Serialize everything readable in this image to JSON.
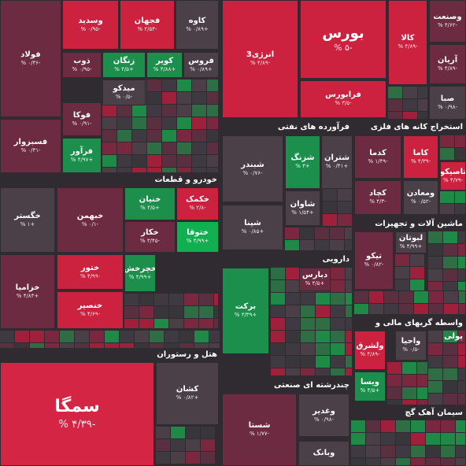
{
  "sectors": [
    {
      "name": "خودرو و قطعات"
    },
    {
      "name": "هتل و رستوران"
    },
    {
      "name": "فرآورده های نفتی"
    },
    {
      "name": "استخراج کانه های فلزی"
    },
    {
      "name": "ماشین آلات و تجهیزات"
    },
    {
      "name": "دارویی"
    },
    {
      "name": "واسطه گریهای مالی و پولی"
    },
    {
      "name": "چندرشته ای صنعتی"
    },
    {
      "name": "سیمان آهک گچ"
    }
  ],
  "tiles": [
    {
      "name": "فولاد",
      "change": "-۰/۳۶ %"
    },
    {
      "name": "فسبزوار",
      "change": "-۰/۳۱ %"
    },
    {
      "name": "وسدید",
      "change": "-۰/۹۵ %"
    },
    {
      "name": "فجهان",
      "change": "-۲/۵۴ %"
    },
    {
      "name": "کاوه",
      "change": "+۰/۸۹ %"
    },
    {
      "name": "ذوب",
      "change": "-۰/۹۵ %"
    },
    {
      "name": "زنگان",
      "change": "+۴/۵ %"
    },
    {
      "name": "کویر",
      "change": "+۴/۸۸ %"
    },
    {
      "name": "فروس",
      "change": "+۰/۸۹ %"
    },
    {
      "name": "میدکو",
      "change": "-۰/۵ %"
    },
    {
      "name": "فوکا",
      "change": "-۰/۹۱ %"
    },
    {
      "name": "فرآور",
      "change": "+۴/۹۷ %"
    },
    {
      "name": "خگستر",
      "change": "+۱ %"
    },
    {
      "name": "خبهمن",
      "change": "-۰/۱ %"
    },
    {
      "name": "خنیان",
      "change": "+۴/۵ %"
    },
    {
      "name": "خکمک",
      "change": "-۲/۸ %"
    },
    {
      "name": "خکار",
      "change": "-۳/۴۵ %"
    },
    {
      "name": "ختوقا",
      "change": "+۴/۹۹ %"
    },
    {
      "name": "ختور",
      "change": "-۴/۹۹ %"
    },
    {
      "name": "خزامیا",
      "change": "+۴/۸۳ %"
    },
    {
      "name": "خنصیر",
      "change": "-۴/۶۹ %"
    },
    {
      "name": "خچرخش",
      "change": "+۴/۹۹ %"
    },
    {
      "name": "سمگا",
      "change": "-۴/۳۹ %"
    },
    {
      "name": "کشان",
      "change": "+۰/۸۲ %"
    },
    {
      "name": "انرژی3",
      "change": "-۴/۸۹ %"
    },
    {
      "name": "بورس",
      "change": "-۵ %"
    },
    {
      "name": "فرابورس",
      "change": "-۳/۵ %"
    },
    {
      "name": "کالا",
      "change": "-۴/۸۹ %"
    },
    {
      "name": "وصنعت",
      "change": "-۴/۶۲ %"
    },
    {
      "name": "آریان",
      "change": "-۴/۸۹ %"
    },
    {
      "name": "صبا",
      "change": "-۰/۹۸ %"
    },
    {
      "name": "شبندر",
      "change": "-۰/۷۶ %"
    },
    {
      "name": "شپنا",
      "change": "+۰/۸۵ %"
    },
    {
      "name": "شزنگ",
      "change": "+۳ %"
    },
    {
      "name": "شتران",
      "change": "+۰/۴۱ %"
    },
    {
      "name": "شاوان",
      "change": "+۱/۵۴ %"
    },
    {
      "name": "کدما",
      "change": "-۱/۴۹ %"
    },
    {
      "name": "کاما",
      "change": "-۴/۳۹ %"
    },
    {
      "name": "تاصیکو",
      "change": "-۴/۷۹ %"
    },
    {
      "name": "کچاد",
      "change": "-۴/۳ %"
    },
    {
      "name": "ومعادن",
      "change": "-۰/۵۲ %"
    },
    {
      "name": "تیکو",
      "change": "-۰/۸۲ %"
    },
    {
      "name": "لبوتان",
      "change": "+۴/۹۹ %"
    },
    {
      "name": "برکت",
      "change": "+۳/۳۹ %"
    },
    {
      "name": "دبارس",
      "change": "+۴/۵ %"
    },
    {
      "name": "ولشرق",
      "change": "-۴/۸۹ %"
    },
    {
      "name": "واحیا",
      "change": "-۰/۵ %"
    },
    {
      "name": "ویسا",
      "change": "+۴/۵ %"
    },
    {
      "name": "شستا",
      "change": "-۱/۷۷ %"
    },
    {
      "name": "وغدیر",
      "change": "-۰/۹۸ %"
    },
    {
      "name": "وبانک"
    }
  ]
}
